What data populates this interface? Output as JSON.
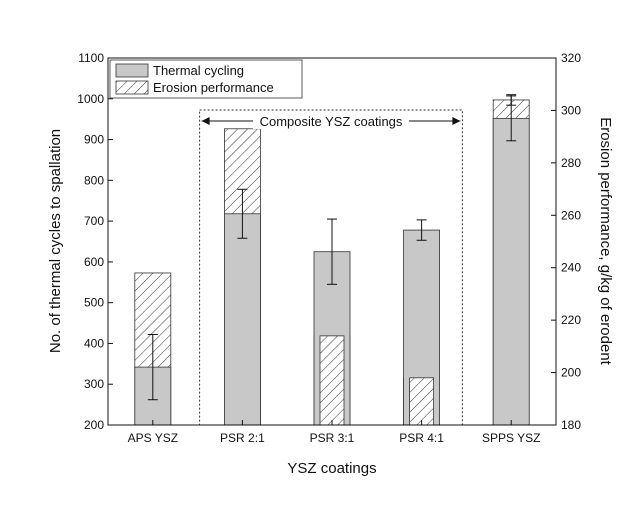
{
  "chart_data": {
    "type": "bar",
    "xlabel": "YSZ coatings",
    "ylabel_left": "No. of thermal cycles to spallation",
    "ylabel_right": "Erosion performance, g/kg of erodent",
    "categories": [
      "APS YSZ",
      "PSR 2:1",
      "PSR 3:1",
      "PSR 4:1",
      "SPPS YSZ"
    ],
    "y_left": {
      "min": 200,
      "max": 1100,
      "ticks": [
        200,
        300,
        400,
        500,
        600,
        700,
        800,
        900,
        1000,
        1100
      ]
    },
    "y_right": {
      "min": 180,
      "max": 320,
      "ticks": [
        180,
        200,
        220,
        240,
        260,
        280,
        300,
        320
      ]
    },
    "series": [
      {
        "name": "Thermal cycling",
        "axis": "left",
        "style": "solid",
        "color": "#c8c8c8",
        "values": [
          342,
          718,
          625,
          678,
          952
        ],
        "error": [
          80,
          60,
          80,
          25,
          55
        ]
      },
      {
        "name": "Erosion performance",
        "axis": "right",
        "style": "hatched",
        "color": "#ffffff",
        "values": [
          238,
          293,
          214,
          198,
          304
        ],
        "error": [
          0,
          0,
          0,
          0,
          2
        ]
      }
    ],
    "annotation": {
      "text": "Composite YSZ coatings",
      "spans": [
        "PSR 2:1",
        "PSR 4:1"
      ]
    },
    "legend": "top-left"
  }
}
